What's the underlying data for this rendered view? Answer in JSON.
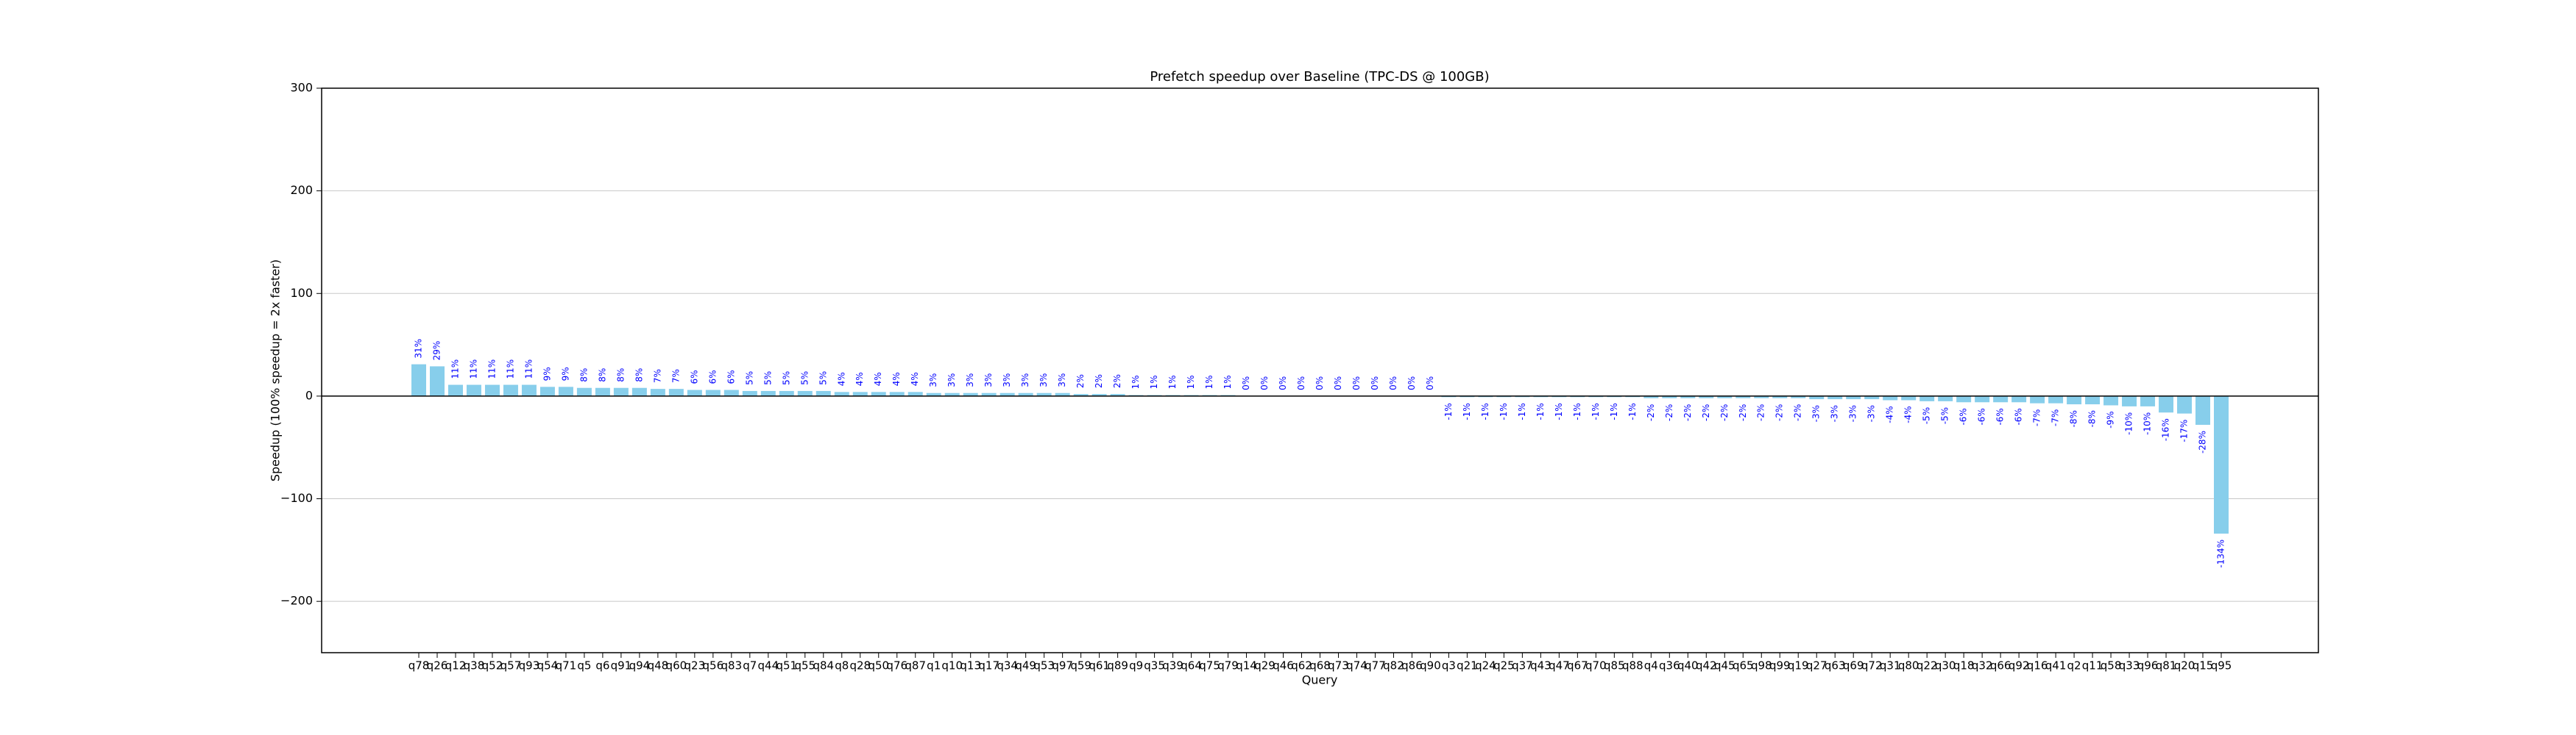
{
  "chart_data": {
    "type": "bar",
    "title": "Prefetch speedup over Baseline (TPC-DS @ 100GB)",
    "xlabel": "Query",
    "ylabel": "Speedup (100% speedup = 2x faster)",
    "categories": [
      "q78",
      "q26",
      "q12",
      "q38",
      "q52",
      "q57",
      "q93",
      "q54",
      "q71",
      "q5",
      "q6",
      "q91",
      "q94",
      "q48",
      "q60",
      "q23",
      "q56",
      "q83",
      "q7",
      "q44",
      "q51",
      "q55",
      "q84",
      "q8",
      "q28",
      "q50",
      "q76",
      "q87",
      "q1",
      "q10",
      "q13",
      "q17",
      "q34",
      "q49",
      "q53",
      "q97",
      "q59",
      "q61",
      "q89",
      "q9",
      "q35",
      "q39",
      "q64",
      "q75",
      "q79",
      "q14",
      "q29",
      "q46",
      "q62",
      "q68",
      "q73",
      "q74",
      "q77",
      "q82",
      "q86",
      "q90",
      "q3",
      "q21",
      "q24",
      "q25",
      "q37",
      "q43",
      "q47",
      "q67",
      "q70",
      "q85",
      "q88",
      "q4",
      "q36",
      "q40",
      "q42",
      "q45",
      "q65",
      "q98",
      "q99",
      "q19",
      "q27",
      "q63",
      "q69",
      "q72",
      "q31",
      "q80",
      "q22",
      "q30",
      "q18",
      "q32",
      "q66",
      "q92",
      "q16",
      "q41",
      "q2",
      "q11",
      "q58",
      "q33",
      "q96",
      "q81",
      "q20",
      "q15",
      "q95"
    ],
    "values": [
      31,
      29,
      11,
      11,
      11,
      11,
      11,
      9,
      9,
      8,
      8,
      8,
      8,
      7,
      7,
      6,
      6,
      6,
      5,
      5,
      5,
      5,
      5,
      4,
      4,
      4,
      4,
      4,
      3,
      3,
      3,
      3,
      3,
      3,
      3,
      3,
      2,
      2,
      2,
      1,
      1,
      1,
      1,
      1,
      1,
      0,
      0,
      0,
      0,
      0,
      0,
      0,
      0,
      0,
      0,
      0,
      -1,
      -1,
      -1,
      -1,
      -1,
      -1,
      -1,
      -1,
      -1,
      -1,
      -1,
      -2,
      -2,
      -2,
      -2,
      -2,
      -2,
      -2,
      -2,
      -2,
      -3,
      -3,
      -3,
      -3,
      -4,
      -4,
      -5,
      -5,
      -6,
      -6,
      -6,
      -6,
      -7,
      -7,
      -8,
      -8,
      -9,
      -10,
      -10,
      -16,
      -17,
      -28,
      -134
    ],
    "value_labels": [
      "31%",
      "29%",
      "11%",
      "11%",
      "11%",
      "11%",
      "11%",
      "9%",
      "9%",
      "8%",
      "8%",
      "8%",
      "8%",
      "7%",
      "7%",
      "6%",
      "6%",
      "6%",
      "5%",
      "5%",
      "5%",
      "5%",
      "5%",
      "4%",
      "4%",
      "4%",
      "4%",
      "4%",
      "3%",
      "3%",
      "3%",
      "3%",
      "3%",
      "3%",
      "3%",
      "3%",
      "2%",
      "2%",
      "2%",
      "1%",
      "1%",
      "1%",
      "1%",
      "1%",
      "1%",
      "0%",
      "0%",
      "0%",
      "0%",
      "0%",
      "0%",
      "0%",
      "0%",
      "0%",
      "0%",
      "0%",
      "-1%",
      "-1%",
      "-1%",
      "-1%",
      "-1%",
      "-1%",
      "-1%",
      "-1%",
      "-1%",
      "-1%",
      "-1%",
      "-2%",
      "-2%",
      "-2%",
      "-2%",
      "-2%",
      "-2%",
      "-2%",
      "-2%",
      "-2%",
      "-3%",
      "-3%",
      "-3%",
      "-3%",
      "-4%",
      "-4%",
      "-5%",
      "-5%",
      "-6%",
      "-6%",
      "-6%",
      "-6%",
      "-7%",
      "-7%",
      "-8%",
      "-8%",
      "-9%",
      "-10%",
      "-10%",
      "-16%",
      "-17%",
      "-28%",
      "-134%"
    ],
    "color": "#87ceeb",
    "label_color": "#0000ff",
    "ylim": [
      -250,
      300
    ],
    "yticks": [
      {
        "value": -200,
        "label": "−200"
      },
      {
        "value": -100,
        "label": "−100"
      },
      0,
      100,
      200,
      300
    ],
    "grid": true
  }
}
